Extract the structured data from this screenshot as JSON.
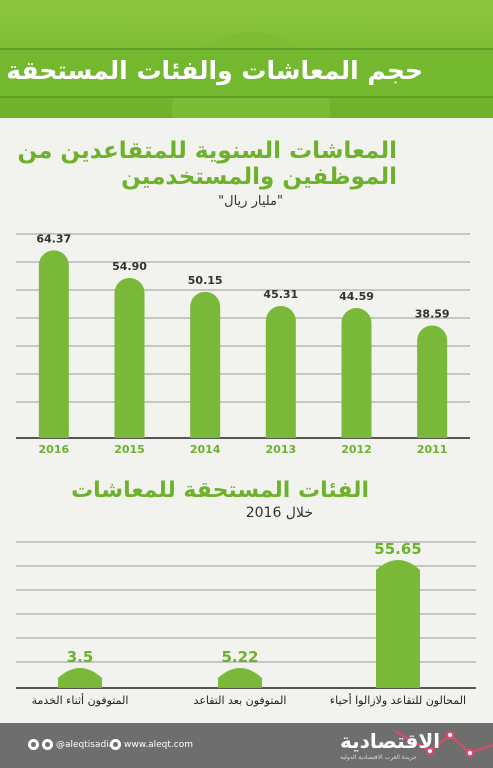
{
  "header": {
    "title": "حجم المعاشات والفئات المستحقة"
  },
  "chart1": {
    "title_line1": "المعاشات السنوية للمتقاعدين من",
    "title_line2": "الموظفين والمستخدمين",
    "unit": "\"مليار ريال\""
  },
  "chart2": {
    "title": "الفئات المستحقة للمعاشات",
    "subtitle": "خلال 2016"
  },
  "footer": {
    "social": "@aleqtisadiah",
    "website": "www.aleqt.com",
    "logo": "الاقتصادية",
    "logo_sub": "جريدة العرب الاقتصادية الدولية"
  },
  "colors": {
    "bar": "#7ab83a",
    "accent": "#6db12c",
    "header": "#7ab83a",
    "footer": "#6e6e6e",
    "grid": "#9a9a9a"
  },
  "icons": [
    "twitter-icon",
    "globe-icon"
  ],
  "chart_data": [
    {
      "type": "bar",
      "title": "المعاشات السنوية للمتقاعدين من الموظفين والمستخدمين",
      "ylabel": "\"مليار ريال\"",
      "categories": [
        "2016",
        "2015",
        "2014",
        "2013",
        "2012",
        "2011"
      ],
      "values": [
        64.37,
        54.9,
        50.15,
        45.31,
        44.59,
        38.59
      ],
      "value_labels": [
        "64.37",
        "54.90",
        "50.15",
        "45.31",
        "44.59",
        "38.59"
      ],
      "ylim": [
        0,
        70
      ],
      "grid": true
    },
    {
      "type": "bar",
      "title": "الفئات المستحقة للمعاشات",
      "subtitle": "خلال 2016",
      "categories": [
        "المتوفون أثناء الخدمة",
        "المتوفون بعد التقاعد",
        "المحالون للتقاعد ولازالوا أحياء"
      ],
      "values": [
        3.5,
        5.22,
        55.65
      ],
      "value_labels": [
        "3.5",
        "5.22",
        "55.65"
      ],
      "ylim": [
        0,
        60
      ],
      "grid": true
    }
  ]
}
